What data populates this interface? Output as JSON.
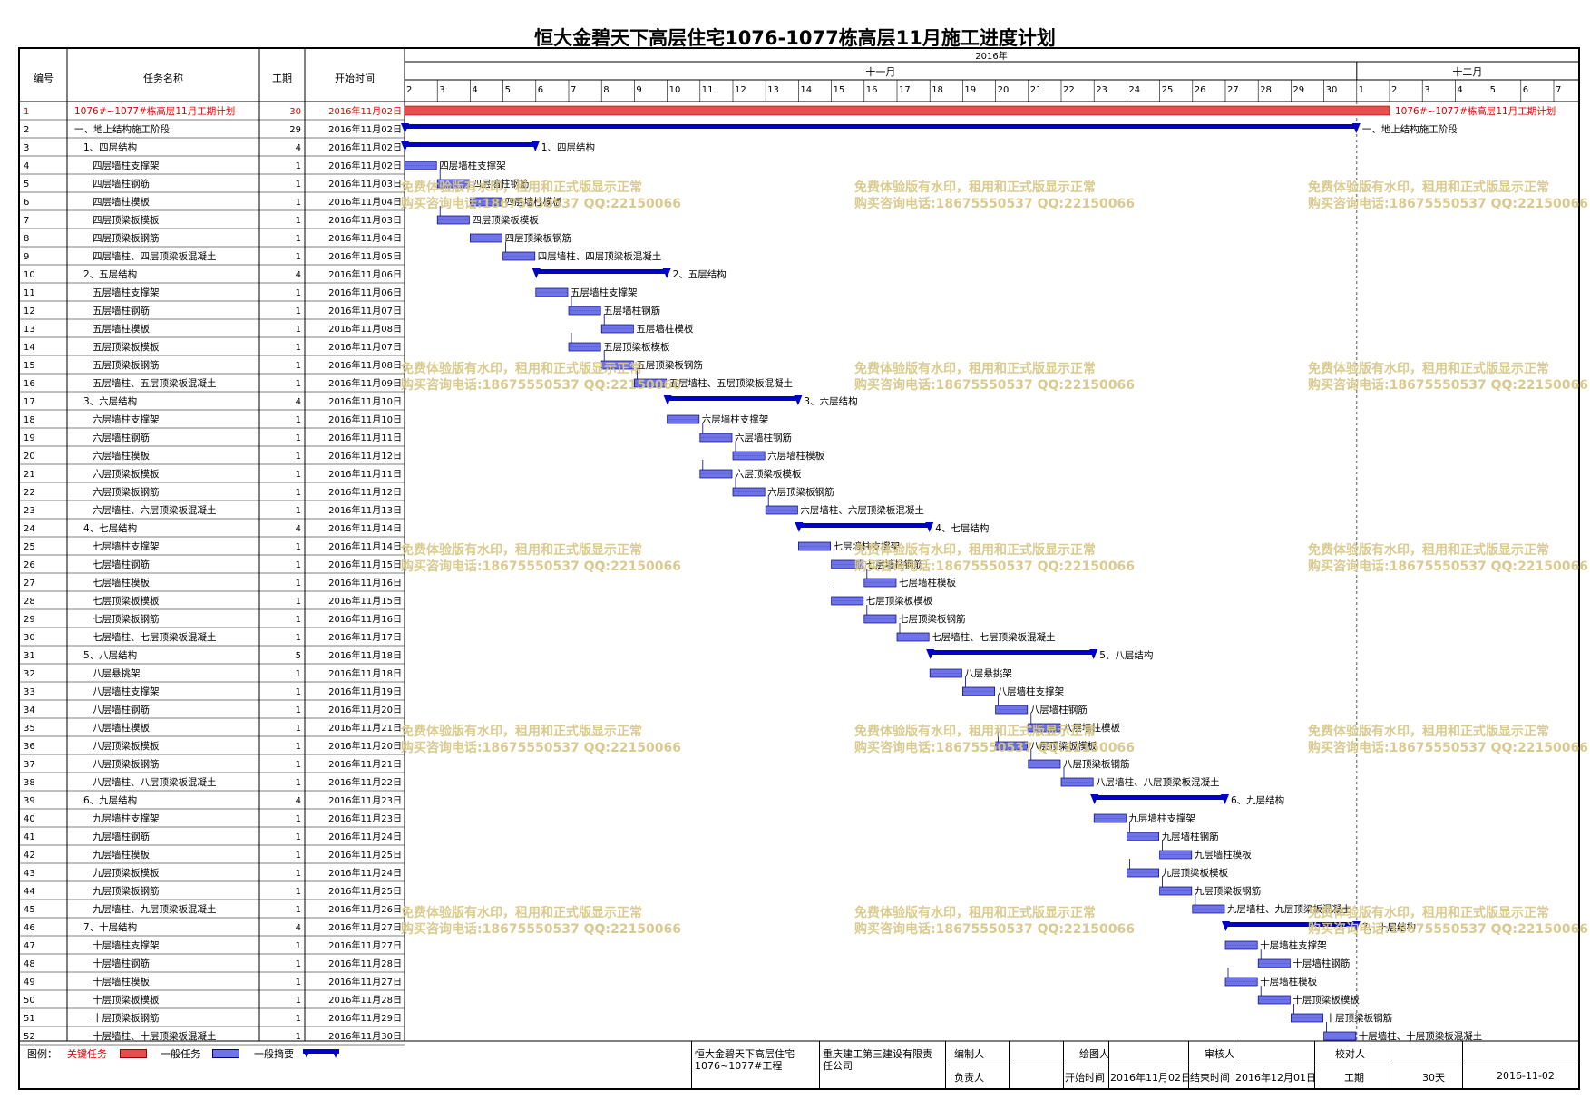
{
  "title": "恒大金碧天下高层住宅1076-1077栋高层11月施工进度计划",
  "headers": {
    "id": "编号",
    "name": "任务名称",
    "duration": "工期",
    "start": "开始时间"
  },
  "timescale": {
    "year": "2016年",
    "months": [
      {
        "label": "十一月",
        "from_day": 2,
        "to_day": 30
      },
      {
        "label": "十二月",
        "from_day": 31,
        "to_day": 37
      }
    ],
    "days": [
      "2",
      "3",
      "4",
      "5",
      "6",
      "7",
      "8",
      "9",
      "10",
      "11",
      "12",
      "13",
      "14",
      "15",
      "16",
      "17",
      "18",
      "19",
      "20",
      "21",
      "22",
      "23",
      "24",
      "25",
      "26",
      "27",
      "28",
      "29",
      "30",
      "1",
      "2",
      "3",
      "4",
      "5",
      "6",
      "7"
    ]
  },
  "watermark": {
    "line1": "免费体验版有水印，租用和正式版显示正常",
    "line2": "购买咨询电话:18675550537 QQ:22150066"
  },
  "footer": {
    "legend_label": "图例：",
    "legend_critical": "关键任务",
    "legend_normal": "一般任务",
    "legend_summary": "一般摘要",
    "project": "恒大金碧天下高层住宅1076~1077#工程",
    "company": "重庆建工第三建设有限责任公司",
    "compiler_label": "编制人",
    "drawer_label": "绘图人",
    "reviewer_label": "审核人",
    "checker_label": "校对人",
    "owner_label": "负责人",
    "start_label": "开始时间",
    "start_value": "2016年11月02日",
    "end_label": "结束时间",
    "end_value": "2016年12月01日",
    "duration_label": "工期",
    "duration_value": "30天",
    "date_value": "2016-11-02"
  },
  "colors": {
    "critical": "#e84c4c",
    "normal": "#6e74e8",
    "summary": "#0000cc",
    "critical_text": "#e00000"
  },
  "chart_data": {
    "type": "gantt",
    "x_unit": "day",
    "x_range": [
      "2016-11-02",
      "2016-12-07"
    ],
    "tasks": [
      {
        "id": "1",
        "name": "1076#~1077#栋高层11月工期计划",
        "duration": 30,
        "start": "2016年11月02日",
        "start_day": 2,
        "kind": "critical",
        "label": "1076#~1077#栋高层11月工期计划"
      },
      {
        "id": "2",
        "name": "一、地上结构施工阶段",
        "duration": 29,
        "start": "2016年11月02日",
        "start_day": 2,
        "kind": "summary",
        "label": "一、地上结构施工阶段"
      },
      {
        "id": "3",
        "name": "1、四层结构",
        "duration": 4,
        "start": "2016年11月02日",
        "start_day": 2,
        "kind": "summary",
        "label": "1、四层结构"
      },
      {
        "id": "4",
        "name": "四层墙柱支撑架",
        "duration": 1,
        "start": "2016年11月02日",
        "start_day": 2,
        "kind": "normal",
        "label": "四层墙柱支撑架"
      },
      {
        "id": "5",
        "name": "四层墙柱钢筋",
        "duration": 1,
        "start": "2016年11月03日",
        "start_day": 3,
        "kind": "normal",
        "label": "四层墙柱钢筋"
      },
      {
        "id": "6",
        "name": "四层墙柱模板",
        "duration": 1,
        "start": "2016年11月04日",
        "start_day": 4,
        "kind": "normal",
        "label": "四层墙柱模板"
      },
      {
        "id": "7",
        "name": "四层顶梁板模板",
        "duration": 1,
        "start": "2016年11月03日",
        "start_day": 3,
        "kind": "normal",
        "label": "四层顶梁板模板"
      },
      {
        "id": "8",
        "name": "四层顶梁板钢筋",
        "duration": 1,
        "start": "2016年11月04日",
        "start_day": 4,
        "kind": "normal",
        "label": "四层顶梁板钢筋"
      },
      {
        "id": "9",
        "name": "四层墙柱、四层顶梁板混凝土",
        "duration": 1,
        "start": "2016年11月05日",
        "start_day": 5,
        "kind": "normal",
        "label": "四层墙柱、四层顶梁板混凝土"
      },
      {
        "id": "10",
        "name": "2、五层结构",
        "duration": 4,
        "start": "2016年11月06日",
        "start_day": 6,
        "kind": "summary",
        "label": "2、五层结构"
      },
      {
        "id": "11",
        "name": "五层墙柱支撑架",
        "duration": 1,
        "start": "2016年11月06日",
        "start_day": 6,
        "kind": "normal",
        "label": "五层墙柱支撑架"
      },
      {
        "id": "12",
        "name": "五层墙柱钢筋",
        "duration": 1,
        "start": "2016年11月07日",
        "start_day": 7,
        "kind": "normal",
        "label": "五层墙柱钢筋"
      },
      {
        "id": "13",
        "name": "五层墙柱模板",
        "duration": 1,
        "start": "2016年11月08日",
        "start_day": 8,
        "kind": "normal",
        "label": "五层墙柱模板"
      },
      {
        "id": "14",
        "name": "五层顶梁板模板",
        "duration": 1,
        "start": "2016年11月07日",
        "start_day": 7,
        "kind": "normal",
        "label": "五层顶梁板模板"
      },
      {
        "id": "15",
        "name": "五层顶梁板钢筋",
        "duration": 1,
        "start": "2016年11月08日",
        "start_day": 8,
        "kind": "normal",
        "label": "五层顶梁板钢筋"
      },
      {
        "id": "16",
        "name": "五层墙柱、五层顶梁板混凝土",
        "duration": 1,
        "start": "2016年11月09日",
        "start_day": 9,
        "kind": "normal",
        "label": "五层墙柱、五层顶梁板混凝土"
      },
      {
        "id": "17",
        "name": "3、六层结构",
        "duration": 4,
        "start": "2016年11月10日",
        "start_day": 10,
        "kind": "summary",
        "label": "3、六层结构"
      },
      {
        "id": "18",
        "name": "六层墙柱支撑架",
        "duration": 1,
        "start": "2016年11月10日",
        "start_day": 10,
        "kind": "normal",
        "label": "六层墙柱支撑架"
      },
      {
        "id": "19",
        "name": "六层墙柱钢筋",
        "duration": 1,
        "start": "2016年11月11日",
        "start_day": 11,
        "kind": "normal",
        "label": "六层墙柱钢筋"
      },
      {
        "id": "20",
        "name": "六层墙柱模板",
        "duration": 1,
        "start": "2016年11月12日",
        "start_day": 12,
        "kind": "normal",
        "label": "六层墙柱模板"
      },
      {
        "id": "21",
        "name": "六层顶梁板模板",
        "duration": 1,
        "start": "2016年11月11日",
        "start_day": 11,
        "kind": "normal",
        "label": "六层顶梁板模板"
      },
      {
        "id": "22",
        "name": "六层顶梁板钢筋",
        "duration": 1,
        "start": "2016年11月12日",
        "start_day": 12,
        "kind": "normal",
        "label": "六层顶梁板钢筋"
      },
      {
        "id": "23",
        "name": "六层墙柱、六层顶梁板混凝土",
        "duration": 1,
        "start": "2016年11月13日",
        "start_day": 13,
        "kind": "normal",
        "label": "六层墙柱、六层顶梁板混凝土"
      },
      {
        "id": "24",
        "name": "4、七层结构",
        "duration": 4,
        "start": "2016年11月14日",
        "start_day": 14,
        "kind": "summary",
        "label": "4、七层结构"
      },
      {
        "id": "25",
        "name": "七层墙柱支撑架",
        "duration": 1,
        "start": "2016年11月14日",
        "start_day": 14,
        "kind": "normal",
        "label": "七层墙柱支撑架"
      },
      {
        "id": "26",
        "name": "七层墙柱钢筋",
        "duration": 1,
        "start": "2016年11月15日",
        "start_day": 15,
        "kind": "normal",
        "label": "七层墙柱钢筋"
      },
      {
        "id": "27",
        "name": "七层墙柱模板",
        "duration": 1,
        "start": "2016年11月16日",
        "start_day": 16,
        "kind": "normal",
        "label": "七层墙柱模板"
      },
      {
        "id": "28",
        "name": "七层顶梁板模板",
        "duration": 1,
        "start": "2016年11月15日",
        "start_day": 15,
        "kind": "normal",
        "label": "七层顶梁板模板"
      },
      {
        "id": "29",
        "name": "七层顶梁板钢筋",
        "duration": 1,
        "start": "2016年11月16日",
        "start_day": 16,
        "kind": "normal",
        "label": "七层顶梁板钢筋"
      },
      {
        "id": "30",
        "name": "七层墙柱、七层顶梁板混凝土",
        "duration": 1,
        "start": "2016年11月17日",
        "start_day": 17,
        "kind": "normal",
        "label": "七层墙柱、七层顶梁板混凝土"
      },
      {
        "id": "31",
        "name": "5、八层结构",
        "duration": 5,
        "start": "2016年11月18日",
        "start_day": 18,
        "kind": "summary",
        "label": "5、八层结构"
      },
      {
        "id": "32",
        "name": "八层悬挑架",
        "duration": 1,
        "start": "2016年11月18日",
        "start_day": 18,
        "kind": "normal",
        "label": "八层悬挑架"
      },
      {
        "id": "33",
        "name": "八层墙柱支撑架",
        "duration": 1,
        "start": "2016年11月19日",
        "start_day": 19,
        "kind": "normal",
        "label": "八层墙柱支撑架"
      },
      {
        "id": "34",
        "name": "八层墙柱钢筋",
        "duration": 1,
        "start": "2016年11月20日",
        "start_day": 20,
        "kind": "normal",
        "label": "八层墙柱钢筋"
      },
      {
        "id": "35",
        "name": "八层墙柱模板",
        "duration": 1,
        "start": "2016年11月21日",
        "start_day": 21,
        "kind": "normal",
        "label": "八层墙柱模板"
      },
      {
        "id": "36",
        "name": "八层顶梁板模板",
        "duration": 1,
        "start": "2016年11月20日",
        "start_day": 20,
        "kind": "normal",
        "label": "八层顶梁板模板"
      },
      {
        "id": "37",
        "name": "八层顶梁板钢筋",
        "duration": 1,
        "start": "2016年11月21日",
        "start_day": 21,
        "kind": "normal",
        "label": "八层顶梁板钢筋"
      },
      {
        "id": "38",
        "name": "八层墙柱、八层顶梁板混凝土",
        "duration": 1,
        "start": "2016年11月22日",
        "start_day": 22,
        "kind": "normal",
        "label": "八层墙柱、八层顶梁板混凝土"
      },
      {
        "id": "39",
        "name": "6、九层结构",
        "duration": 4,
        "start": "2016年11月23日",
        "start_day": 23,
        "kind": "summary",
        "label": "6、九层结构"
      },
      {
        "id": "40",
        "name": "九层墙柱支撑架",
        "duration": 1,
        "start": "2016年11月23日",
        "start_day": 23,
        "kind": "normal",
        "label": "九层墙柱支撑架"
      },
      {
        "id": "41",
        "name": "九层墙柱钢筋",
        "duration": 1,
        "start": "2016年11月24日",
        "start_day": 24,
        "kind": "normal",
        "label": "九层墙柱钢筋"
      },
      {
        "id": "42",
        "name": "九层墙柱模板",
        "duration": 1,
        "start": "2016年11月25日",
        "start_day": 25,
        "kind": "normal",
        "label": "九层墙柱模板"
      },
      {
        "id": "43",
        "name": "九层顶梁板模板",
        "duration": 1,
        "start": "2016年11月24日",
        "start_day": 24,
        "kind": "normal",
        "label": "九层顶梁板模板"
      },
      {
        "id": "44",
        "name": "九层顶梁板钢筋",
        "duration": 1,
        "start": "2016年11月25日",
        "start_day": 25,
        "kind": "normal",
        "label": "九层顶梁板钢筋"
      },
      {
        "id": "45",
        "name": "九层墙柱、九层顶梁板混凝土",
        "duration": 1,
        "start": "2016年11月26日",
        "start_day": 26,
        "kind": "normal",
        "label": "九层墙柱、九层顶梁板混凝土"
      },
      {
        "id": "46",
        "name": "7、十层结构",
        "duration": 4,
        "start": "2016年11月27日",
        "start_day": 27,
        "kind": "summary",
        "label": "7、十层结构"
      },
      {
        "id": "47",
        "name": "十层墙柱支撑架",
        "duration": 1,
        "start": "2016年11月27日",
        "start_day": 27,
        "kind": "normal",
        "label": "十层墙柱支撑架"
      },
      {
        "id": "48",
        "name": "十层墙柱钢筋",
        "duration": 1,
        "start": "2016年11月28日",
        "start_day": 28,
        "kind": "normal",
        "label": "十层墙柱钢筋"
      },
      {
        "id": "49",
        "name": "十层墙柱模板",
        "duration": 1,
        "start": "2016年11月27日",
        "start_day": 27,
        "kind": "normal",
        "label": "十层墙柱模板"
      },
      {
        "id": "50",
        "name": "十层顶梁板模板",
        "duration": 1,
        "start": "2016年11月28日",
        "start_day": 28,
        "kind": "normal",
        "label": "十层顶梁板模板"
      },
      {
        "id": "51",
        "name": "十层顶梁板钢筋",
        "duration": 1,
        "start": "2016年11月29日",
        "start_day": 29,
        "kind": "normal",
        "label": "十层顶梁板钢筋"
      },
      {
        "id": "52",
        "name": "十层墙柱、十层顶梁板混凝土",
        "duration": 1,
        "start": "2016年11月30日",
        "start_day": 30,
        "kind": "normal",
        "label": "十层墙柱、十层顶梁板混凝土"
      }
    ]
  }
}
